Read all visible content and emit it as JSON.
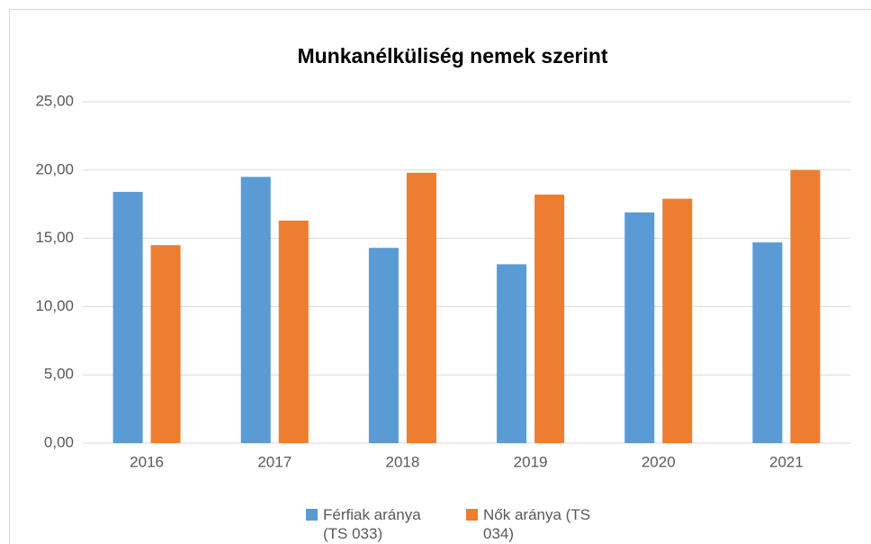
{
  "chart_data": {
    "type": "bar",
    "title": "Munkanélküliség nemek szerint",
    "categories": [
      "2016",
      "2017",
      "2018",
      "2019",
      "2020",
      "2021"
    ],
    "series": [
      {
        "name": "Férfiak aránya (TS 033)",
        "color": "#5b9bd5",
        "values": [
          18.4,
          19.5,
          14.3,
          13.1,
          16.9,
          14.7
        ]
      },
      {
        "name": "Nők aránya (TS 034)",
        "color": "#ed7d31",
        "values": [
          14.5,
          16.3,
          19.8,
          18.2,
          17.9,
          20.0
        ]
      }
    ],
    "ylim": [
      0,
      25
    ],
    "yticks": [
      {
        "value": 0,
        "label": "0,00"
      },
      {
        "value": 5,
        "label": "5,00"
      },
      {
        "value": 10,
        "label": "10,00"
      },
      {
        "value": 15,
        "label": "15,00"
      },
      {
        "value": 20,
        "label": "20,00"
      },
      {
        "value": 25,
        "label": "25,00"
      }
    ],
    "grid": true,
    "legend": "bottom"
  }
}
